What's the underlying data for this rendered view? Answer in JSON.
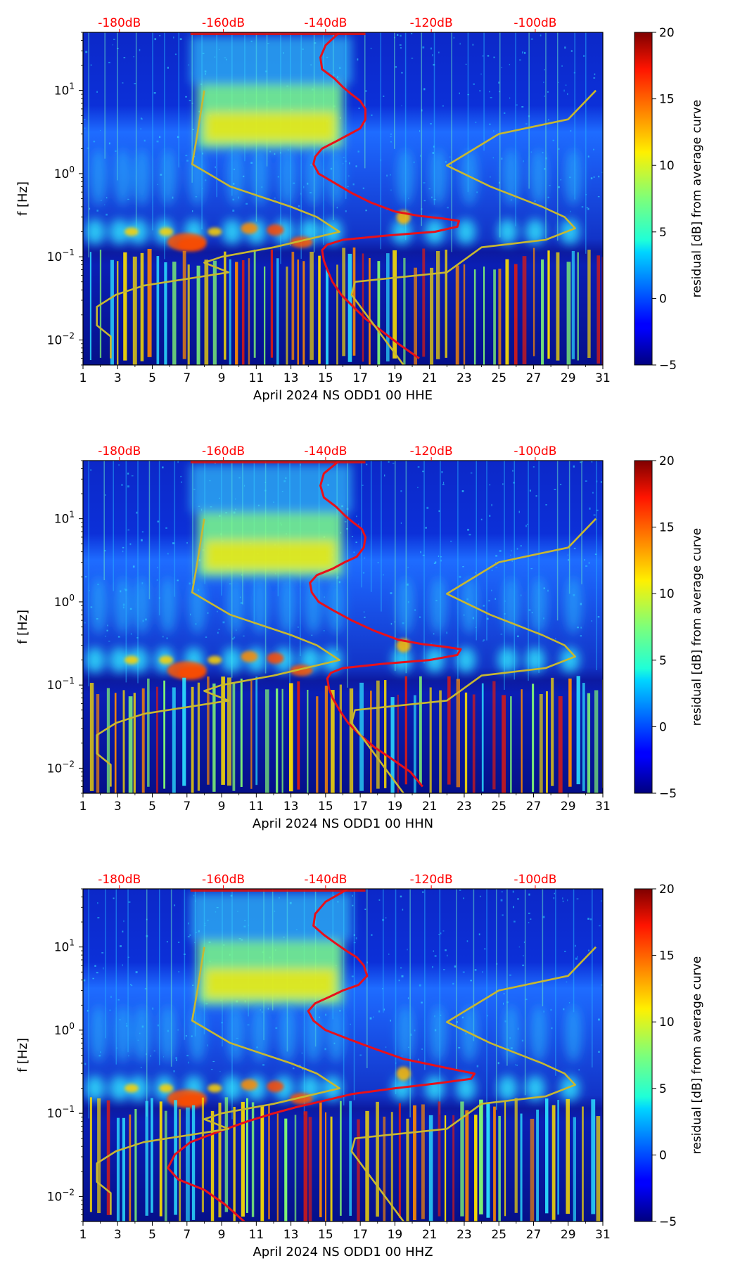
{
  "figure": {
    "colorbar_label": "residual [dB] from average curve",
    "ylabel": "f [Hz]",
    "colors": {
      "noise_curve": "#e8101a",
      "model_curves": "#c8b830",
      "top_axis_text": "#ff0000"
    }
  },
  "chart_data": [
    {
      "type": "heatmap",
      "xlabel": "April 2024 NS ODD1 00 HHE",
      "ylabel": "f [Hz]",
      "x_ticks": [
        "1",
        "3",
        "5",
        "7",
        "9",
        "11",
        "13",
        "15",
        "17",
        "19",
        "21",
        "23",
        "25",
        "27",
        "29",
        "31"
      ],
      "y_ticks": [
        "10^-2",
        "10^-1",
        "10^0",
        "10^1"
      ],
      "y_scale": "log",
      "ylim": [
        0.005,
        50
      ],
      "xlim": [
        1,
        31
      ],
      "top_ticks": [
        "-180dB",
        "-160dB",
        "-140dB",
        "-120dB",
        "-100dB"
      ],
      "colorbar": {
        "min": -5,
        "max": 20,
        "ticks": [
          "20",
          "15",
          "10",
          "5",
          "0",
          "−5"
        ],
        "colormap": "jet",
        "label": "residual [dB] from average curve"
      },
      "series": [
        {
          "x": [
            15.8,
            15.0,
            14.7,
            14.8,
            15.5,
            16.0,
            16.5,
            17.0,
            17.3,
            17.3,
            17.0,
            16.4,
            15.7,
            14.8,
            14.4,
            14.3,
            14.6,
            15.4,
            16.4,
            17.6,
            19.0,
            20.4,
            21.7,
            22.7,
            22.6,
            21.3,
            18.5,
            16.0,
            15.1,
            14.8,
            14.9,
            15.1,
            15.4,
            15.9,
            16.6,
            17.3,
            18.2,
            19.2,
            20.4
          ],
          "y": [
            50,
            35,
            25,
            18,
            14,
            11,
            9,
            7.5,
            6,
            4.5,
            3.5,
            3,
            2.5,
            2,
            1.6,
            1.3,
            1.0,
            0.8,
            0.6,
            0.45,
            0.35,
            0.31,
            0.29,
            0.27,
            0.23,
            0.2,
            0.18,
            0.16,
            0.14,
            0.12,
            0.09,
            0.07,
            0.05,
            0.035,
            0.025,
            0.018,
            0.013,
            0.009,
            0.006
          ]
        },
        {
          "x": [
            8.0,
            7.6,
            7.3,
            9.5,
            13.0,
            14.5,
            15.8,
            12.0,
            9.0,
            8.0,
            9.4,
            4.5,
            2.9,
            1.8,
            1.8,
            2.6,
            2.6
          ],
          "y": [
            10,
            3,
            1.3,
            0.7,
            0.4,
            0.3,
            0.2,
            0.13,
            0.1,
            0.085,
            0.065,
            0.045,
            0.035,
            0.025,
            0.015,
            0.011,
            0.006
          ]
        },
        {
          "x": [
            30.6,
            29.0,
            25.0,
            22.0,
            24.5,
            27.5,
            28.8,
            29.4,
            27.7,
            24.0,
            22.0,
            16.7,
            16.5,
            19.5
          ],
          "y": [
            10,
            4.5,
            3,
            1.25,
            0.7,
            0.4,
            0.3,
            0.22,
            0.16,
            0.13,
            0.065,
            0.05,
            0.035,
            0.005
          ]
        }
      ]
    },
    {
      "type": "heatmap",
      "xlabel": "April 2024 NS ODD1 00 HHN",
      "ylabel": "f [Hz]",
      "x_ticks": [
        "1",
        "3",
        "5",
        "7",
        "9",
        "11",
        "13",
        "15",
        "17",
        "19",
        "21",
        "23",
        "25",
        "27",
        "29",
        "31"
      ],
      "y_ticks": [
        "10^-2",
        "10^-1",
        "10^0",
        "10^1"
      ],
      "y_scale": "log",
      "ylim": [
        0.005,
        50
      ],
      "xlim": [
        1,
        31
      ],
      "top_ticks": [
        "-180dB",
        "-160dB",
        "-140dB",
        "-120dB",
        "-100dB"
      ],
      "colorbar": {
        "min": -5,
        "max": 20,
        "ticks": [
          "20",
          "15",
          "10",
          "5",
          "0",
          "−5"
        ],
        "colormap": "jet",
        "label": "residual [dB] from average curve"
      },
      "series": [
        {
          "x": [
            15.8,
            14.9,
            14.7,
            14.9,
            15.6,
            16.1,
            16.6,
            17.1,
            17.3,
            17.2,
            16.8,
            16.1,
            15.4,
            14.5,
            14.1,
            14.2,
            14.6,
            15.4,
            16.5,
            17.8,
            19.2,
            20.6,
            21.8,
            22.8,
            22.6,
            21.0,
            18.3,
            16.0,
            15.3,
            15.1,
            15.2,
            15.4,
            15.8,
            16.3,
            17.0,
            17.8,
            18.8,
            19.9,
            20.6
          ],
          "y": [
            50,
            35,
            25,
            18,
            14,
            11,
            9,
            7.5,
            6,
            4.5,
            3.5,
            3,
            2.5,
            2.1,
            1.7,
            1.3,
            1.0,
            0.8,
            0.6,
            0.45,
            0.35,
            0.31,
            0.29,
            0.27,
            0.23,
            0.2,
            0.18,
            0.16,
            0.14,
            0.12,
            0.09,
            0.07,
            0.05,
            0.035,
            0.025,
            0.018,
            0.013,
            0.009,
            0.006
          ]
        },
        {
          "x": [
            8.0,
            7.6,
            7.3,
            9.5,
            13.0,
            14.5,
            15.8,
            12.0,
            9.0,
            8.0,
            9.4,
            4.5,
            2.9,
            1.8,
            1.8,
            2.6,
            2.6
          ],
          "y": [
            10,
            3,
            1.3,
            0.7,
            0.4,
            0.3,
            0.2,
            0.13,
            0.1,
            0.085,
            0.065,
            0.045,
            0.035,
            0.025,
            0.015,
            0.011,
            0.006
          ]
        },
        {
          "x": [
            30.6,
            29.0,
            25.0,
            22.0,
            24.5,
            27.5,
            28.8,
            29.4,
            27.7,
            24.0,
            22.0,
            16.7,
            16.5,
            19.5
          ],
          "y": [
            10,
            4.5,
            3,
            1.25,
            0.7,
            0.4,
            0.3,
            0.22,
            0.16,
            0.13,
            0.065,
            0.05,
            0.035,
            0.005
          ]
        }
      ]
    },
    {
      "type": "heatmap",
      "xlabel": "April 2024 NS ODD1 00 HHZ",
      "ylabel": "f [Hz]",
      "x_ticks": [
        "1",
        "3",
        "5",
        "7",
        "9",
        "11",
        "13",
        "15",
        "17",
        "19",
        "21",
        "23",
        "25",
        "27",
        "29",
        "31"
      ],
      "y_ticks": [
        "10^-2",
        "10^-1",
        "10^0",
        "10^1"
      ],
      "y_scale": "log",
      "ylim": [
        0.005,
        50
      ],
      "xlim": [
        1,
        31
      ],
      "top_ticks": [
        "-180dB",
        "-160dB",
        "-140dB",
        "-120dB",
        "-100dB"
      ],
      "colorbar": {
        "min": -5,
        "max": 20,
        "ticks": [
          "20",
          "15",
          "10",
          "5",
          "0",
          "−5"
        ],
        "colormap": "jet",
        "label": "residual [dB] from average curve"
      },
      "series": [
        {
          "x": [
            16.3,
            15.0,
            14.4,
            14.3,
            14.9,
            15.6,
            16.2,
            16.8,
            17.2,
            17.4,
            16.9,
            16.0,
            15.2,
            14.4,
            14.0,
            14.3,
            15.0,
            16.2,
            17.8,
            19.5,
            21.2,
            22.6,
            23.6,
            23.4,
            21.5,
            19.0,
            16.5,
            14.8,
            13.4,
            12.0,
            10.5,
            8.8,
            7.2,
            6.3,
            5.9,
            6.5,
            8.0,
            9.2,
            10.3
          ],
          "y": [
            50,
            35,
            25,
            18,
            14,
            11,
            9,
            7.5,
            6,
            4.5,
            3.5,
            3,
            2.5,
            2.1,
            1.7,
            1.3,
            1.0,
            0.8,
            0.6,
            0.45,
            0.38,
            0.33,
            0.3,
            0.26,
            0.23,
            0.2,
            0.17,
            0.14,
            0.12,
            0.1,
            0.08,
            0.06,
            0.045,
            0.032,
            0.022,
            0.016,
            0.012,
            0.008,
            0.005
          ]
        },
        {
          "x": [
            8.0,
            7.6,
            7.3,
            9.5,
            13.0,
            14.5,
            15.8,
            12.0,
            9.0,
            8.0,
            9.4,
            4.5,
            2.9,
            1.8,
            1.8,
            2.6,
            2.6
          ],
          "y": [
            10,
            3,
            1.3,
            0.7,
            0.4,
            0.3,
            0.2,
            0.13,
            0.1,
            0.085,
            0.065,
            0.045,
            0.035,
            0.025,
            0.015,
            0.011,
            0.006
          ]
        },
        {
          "x": [
            30.6,
            29.0,
            25.0,
            22.0,
            24.5,
            27.5,
            28.8,
            29.4,
            27.7,
            24.0,
            22.0,
            16.7,
            16.5,
            19.5
          ],
          "y": [
            10,
            4.5,
            3,
            1.25,
            0.7,
            0.4,
            0.3,
            0.22,
            0.16,
            0.13,
            0.065,
            0.05,
            0.035,
            0.005
          ]
        }
      ]
    }
  ]
}
